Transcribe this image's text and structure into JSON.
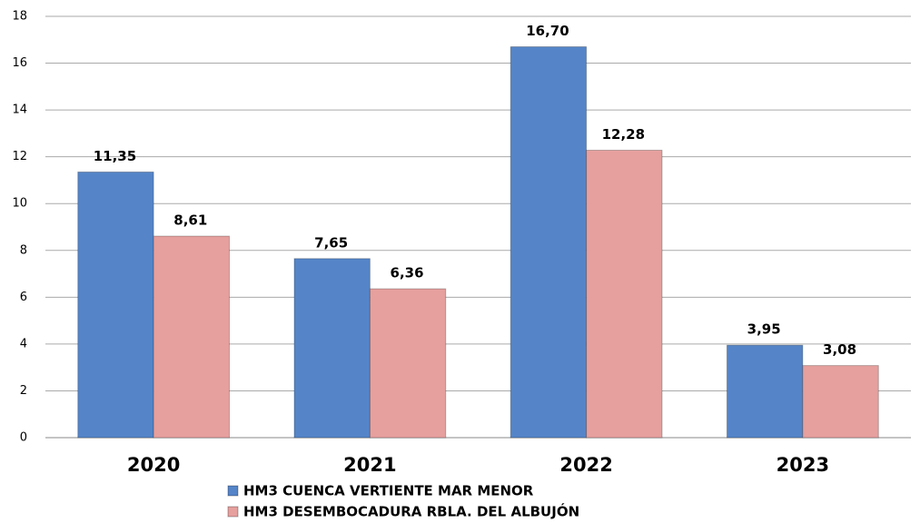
{
  "chart_data": {
    "type": "bar",
    "categories": [
      "2020",
      "2021",
      "2022",
      "2023"
    ],
    "series": [
      {
        "name": "HM3 CUENCA VERTIENTE MAR MENOR",
        "color": "#5585c8",
        "values": [
          11.35,
          7.65,
          16.7,
          3.95
        ],
        "value_labels": [
          "11,35",
          "7,65",
          "16,70",
          "3,95"
        ]
      },
      {
        "name": "HM3 DESEMBOCADURA RBLA. DEL ALBUJÓN",
        "color": "#e6a09e",
        "values": [
          8.61,
          6.36,
          12.28,
          3.08
        ],
        "value_labels": [
          "8,61",
          "6,36",
          "12,28",
          "3,08"
        ]
      }
    ],
    "ylim": [
      0,
      18
    ],
    "yticks": [
      0,
      2,
      4,
      6,
      8,
      10,
      12,
      14,
      16,
      18
    ],
    "grid": true,
    "legend": "bottom"
  }
}
